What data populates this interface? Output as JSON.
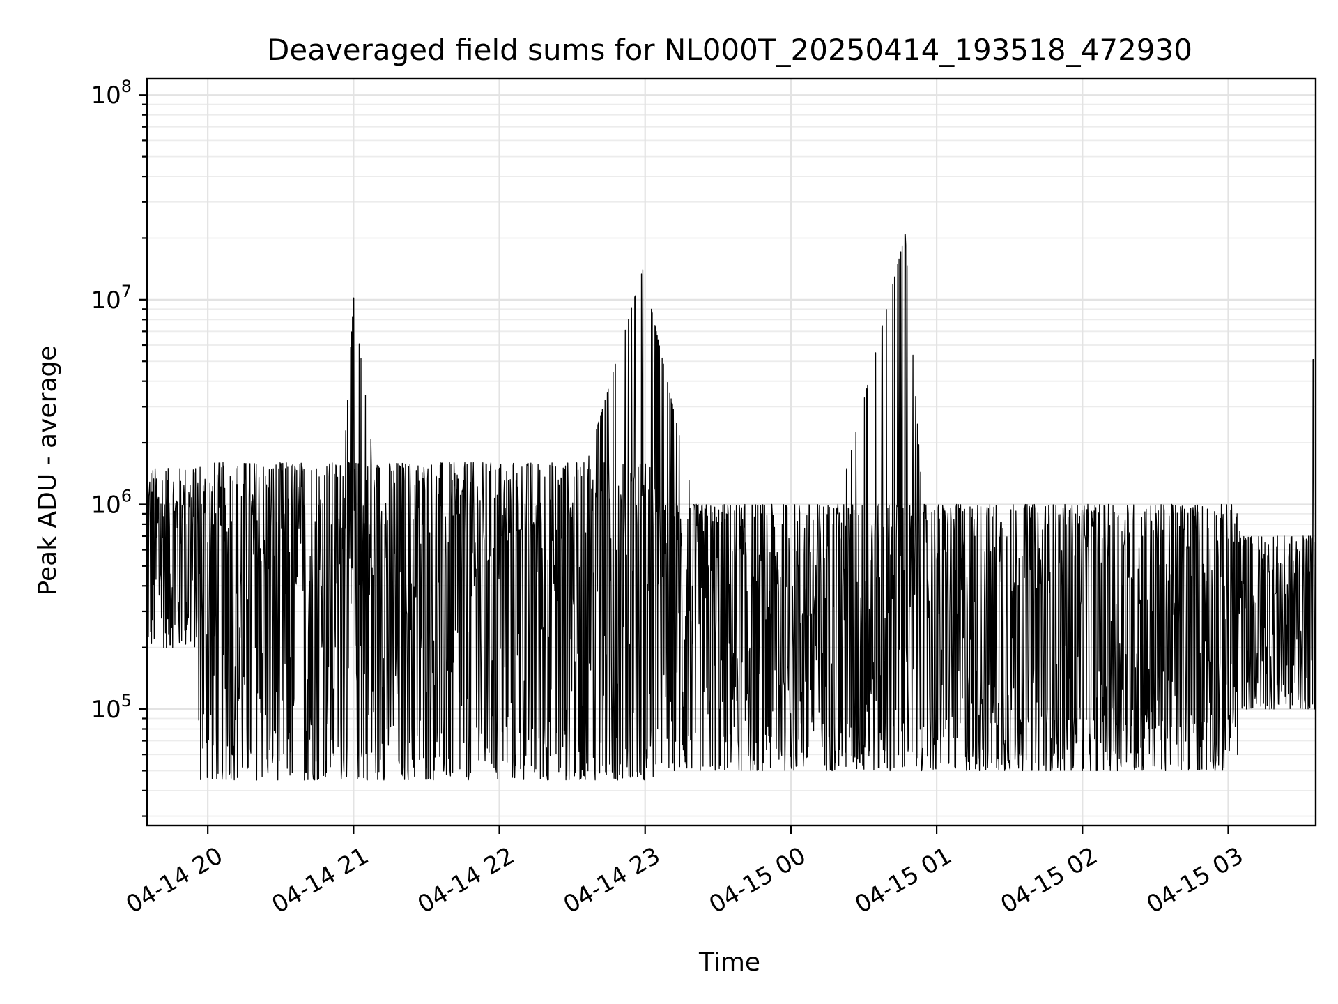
{
  "chart_data": {
    "type": "line",
    "title": "Deaveraged field sums for NL000T_20250414_193518_472930",
    "xlabel": "Time",
    "ylabel": "Peak ADU - average",
    "yscale": "log",
    "ylim": [
      27000,
      120000000
    ],
    "xlim": [
      "2025-04-14 19:35",
      "2025-04-15 03:36"
    ],
    "grid": true,
    "x_tick_labels": [
      "04-14 20",
      "04-14 21",
      "04-14 22",
      "04-14 23",
      "04-15 00",
      "04-15 01",
      "04-15 02",
      "04-15 03"
    ],
    "y_tick_labels": [
      {
        "base": "10",
        "exp": "5",
        "value": 100000
      },
      {
        "base": "10",
        "exp": "6",
        "value": 1000000
      },
      {
        "base": "10",
        "exp": "7",
        "value": 10000000
      },
      {
        "base": "10",
        "exp": "8",
        "value": 100000000
      }
    ],
    "series": [
      {
        "color": "#000000",
        "points": [
          [
            "2025-04-14 19:35",
            550000
          ],
          [
            "2025-04-14 19:40",
            420000
          ],
          [
            "2025-04-14 19:45",
            900000
          ],
          [
            "2025-04-14 19:50",
            1000000
          ],
          [
            "2025-04-14 19:55",
            950000
          ],
          [
            "2025-04-14 20:00",
            100000
          ],
          [
            "2025-04-14 20:10",
            60000
          ],
          [
            "2025-04-14 20:20",
            900000
          ],
          [
            "2025-04-14 20:30",
            80000
          ],
          [
            "2025-04-14 20:40",
            1000000
          ],
          [
            "2025-04-14 20:50",
            100000
          ],
          [
            "2025-04-14 21:00",
            10200000
          ],
          [
            "2025-04-14 21:10",
            1100000
          ],
          [
            "2025-04-14 21:30",
            120000
          ],
          [
            "2025-04-14 22:00",
            700000
          ],
          [
            "2025-04-14 22:30",
            900000
          ],
          [
            "2025-04-14 22:59",
            14000000
          ],
          [
            "2025-04-14 23:30",
            300000
          ],
          [
            "2025-04-15 00:00",
            120000
          ],
          [
            "2025-04-15 00:47",
            20800000
          ],
          [
            "2025-04-15 01:00",
            90000
          ],
          [
            "2025-04-15 01:30",
            85000
          ],
          [
            "2025-04-15 02:00",
            90000
          ],
          [
            "2025-04-15 02:30",
            80000
          ],
          [
            "2025-04-15 03:00",
            90000
          ],
          [
            "2025-04-15 03:20",
            250000
          ],
          [
            "2025-04-15 03:33",
            1800000
          ],
          [
            "2025-04-15 03:35",
            5100000
          ],
          [
            "2025-04-15 03:36",
            700000
          ]
        ]
      }
    ]
  }
}
